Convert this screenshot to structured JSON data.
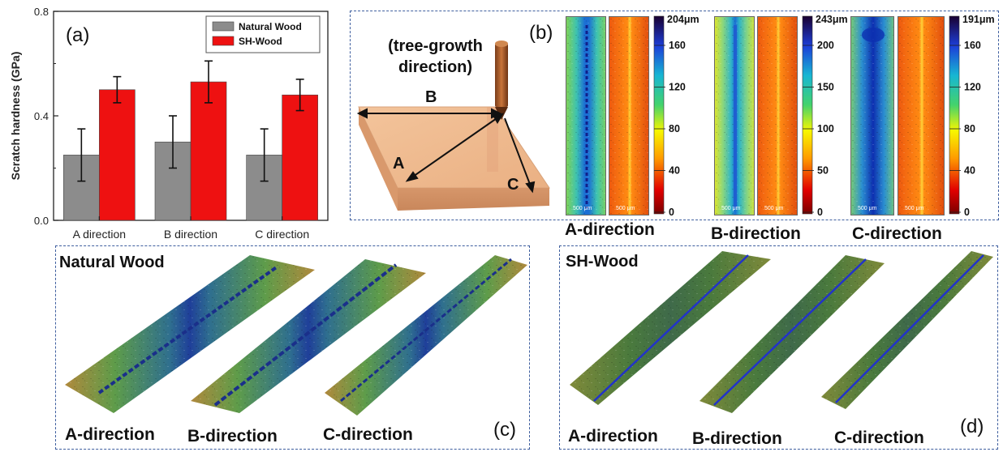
{
  "chart_data": {
    "type": "bar",
    "categories": [
      "A direction",
      "B direction",
      "C direction"
    ],
    "series": [
      {
        "name": "Natural Wood",
        "values": [
          0.25,
          0.3,
          0.25
        ],
        "errors": [
          0.1,
          0.1,
          0.1
        ],
        "color": "#8c8c8c"
      },
      {
        "name": "SH-Wood",
        "values": [
          0.5,
          0.53,
          0.48
        ],
        "errors": [
          0.05,
          0.08,
          0.06
        ],
        "color": "#ee1111"
      }
    ],
    "ylabel": "Scratch hardness (GPa)",
    "xlabel": "",
    "ylim": [
      0.0,
      0.8
    ],
    "yticks": [
      "0.0",
      "0.4",
      "0.8"
    ],
    "legend_position": "top-right",
    "grid": false
  },
  "panels": {
    "a": {
      "label": "(a)"
    },
    "b": {
      "label": "(b)",
      "growth_label": "(tree-growth\ndirection)",
      "axis_a": "A",
      "axis_b": "B",
      "axis_c": "C",
      "maps": [
        {
          "caption": "A-direction",
          "colorbar_max": "204μm",
          "ticks": [
            "160",
            "120",
            "80",
            "40",
            "0"
          ],
          "scale": "500 μm"
        },
        {
          "caption": "B-direction",
          "colorbar_max": "243μm",
          "ticks": [
            "200",
            "150",
            "100",
            "50",
            "0"
          ],
          "scale": "500 μm"
        },
        {
          "caption": "C-direction",
          "colorbar_max": "191μm",
          "ticks": [
            "160",
            "120",
            "80",
            "40",
            "0"
          ],
          "scale": "500 μm"
        }
      ]
    },
    "c": {
      "label": "(c)",
      "title": "Natural Wood",
      "captions": [
        "A-direction",
        "B-direction",
        "C-direction"
      ]
    },
    "d": {
      "label": "(d)",
      "title": "SH-Wood",
      "captions": [
        "A-direction",
        "B-direction",
        "C-direction"
      ]
    }
  },
  "colors": {
    "frame": "#3f5f9f",
    "natural_wood": "#8c8c8c",
    "sh_wood": "#ee1111",
    "wood_block": "#eeb285"
  }
}
